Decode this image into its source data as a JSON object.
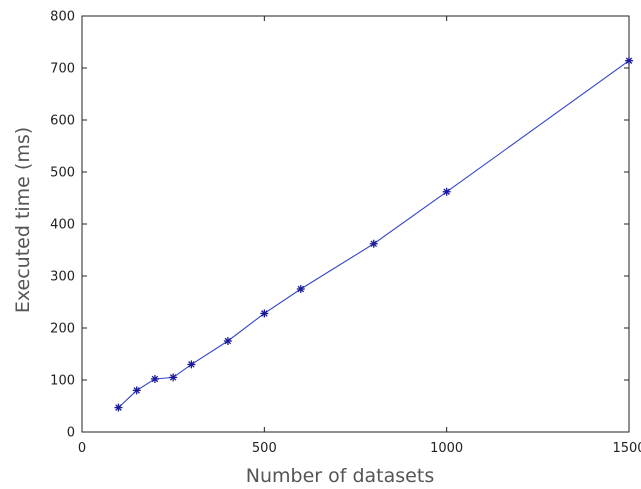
{
  "chart_data": {
    "type": "line",
    "title": "",
    "xlabel": "Number of datasets",
    "ylabel": "Executed time (ms)",
    "xlim": [
      0,
      1500
    ],
    "ylim": [
      0,
      800
    ],
    "xticks": [
      0,
      500,
      1000,
      1500
    ],
    "yticks": [
      0,
      100,
      200,
      300,
      400,
      500,
      600,
      700,
      800
    ],
    "grid": false,
    "legend": "none",
    "marker": "star",
    "line_color": "#3344cc",
    "marker_color": "#1a1a99",
    "series": [
      {
        "x": [
          100,
          150,
          200,
          250,
          300,
          400,
          500,
          600,
          800,
          1000,
          1500
        ],
        "y": [
          47,
          80,
          102,
          105,
          130,
          175,
          228,
          275,
          362,
          462,
          714
        ]
      }
    ]
  }
}
